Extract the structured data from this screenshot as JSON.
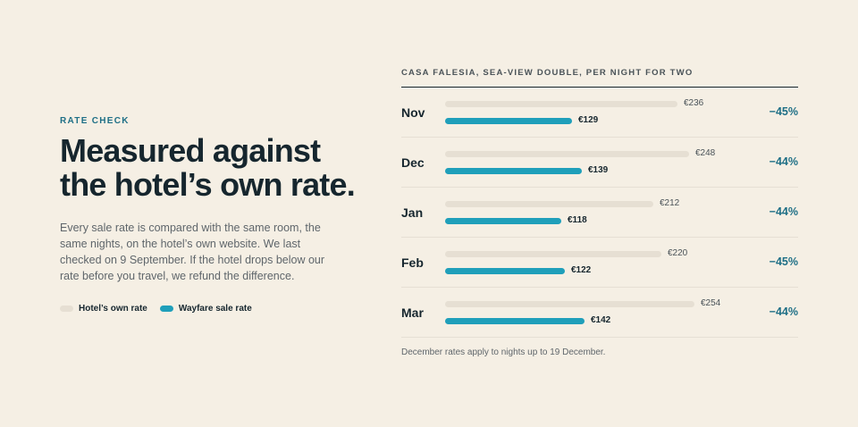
{
  "intro": {
    "eyebrow": "RATE CHECK",
    "headline": "Measured against the hotel’s own rate.",
    "body": "Every sale rate is compared with the same room, the same nights, on the hotel’s own website. We last checked on 9 September. If the hotel drops below our rate before you travel, we refund the difference."
  },
  "chart_data": {
    "type": "bar",
    "orientation": "horizontal",
    "title": "CASA FALESIA, SEA-VIEW DOUBLE, PER NIGHT FOR TWO",
    "categories": [
      "Nov",
      "Dec",
      "Jan",
      "Feb",
      "Mar"
    ],
    "series": [
      {
        "name": "Hotel’s own rate",
        "values": [
          236,
          248,
          212,
          220,
          254
        ],
        "labels": [
          "€236",
          "€248",
          "€212",
          "€220",
          "€254"
        ],
        "color": "#e6dfd3"
      },
      {
        "name": "Wayfare sale rate",
        "values": [
          129,
          139,
          118,
          122,
          142
        ],
        "labels": [
          "€129",
          "€139",
          "€118",
          "€122",
          "€142"
        ],
        "color": "#1f9fba"
      }
    ],
    "discounts": [
      "−45%",
      "−44%",
      "−44%",
      "−45%",
      "−44%"
    ],
    "xlim": [
      0,
      300
    ],
    "legend": "left",
    "grid": false,
    "footnote": "December rates apply to nights up to 19 December."
  }
}
